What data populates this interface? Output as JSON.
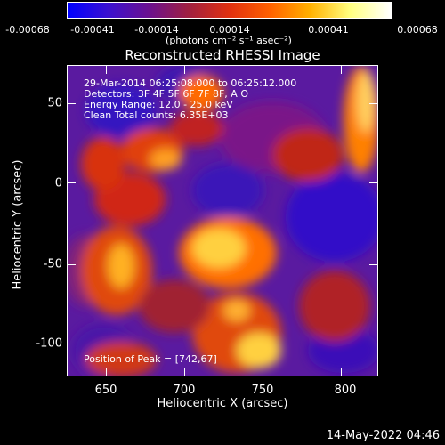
{
  "colorbar": {
    "ticks": [
      "-0.00068",
      "-0.00041",
      "-0.00014",
      "0.00014",
      "0.00041",
      "0.00068"
    ],
    "units": "(photons cm⁻² s⁻¹ asec⁻²)",
    "colormap": [
      "#0000ff",
      "#3a10d0",
      "#6a1090",
      "#a02040",
      "#e03010",
      "#ff6000",
      "#ffb000",
      "#ffff80",
      "#ffffff"
    ]
  },
  "title": "Reconstructed RHESSI Image",
  "annotations": {
    "time": "29-Mar-2014 06:25:08.000 to 06:25:12.000",
    "detectors": "Detectors: 3F 4F 5F 6F 7F 8F, A  O",
    "energy": "Energy Range: 12.0 - 25.0 keV",
    "clean": "Clean     Total counts: 6.35E+03",
    "peak": "Position of Peak = [742,67]"
  },
  "axes": {
    "xlabel": "Heliocentric X (arcsec)",
    "ylabel": "Heliocentric Y (arcsec)",
    "xticks": [
      "650",
      "700",
      "750",
      "800"
    ],
    "yticks": [
      "50",
      "0",
      "-50",
      "-100"
    ]
  },
  "datestamp": "14-May-2022 04:46"
}
